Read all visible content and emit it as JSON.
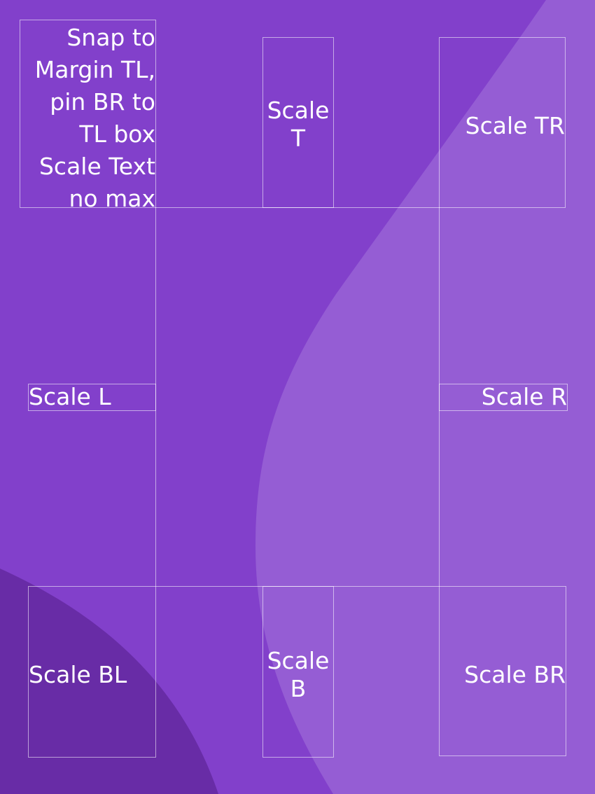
{
  "colors": {
    "background": "#8240cb",
    "light_wave": "#955dd4",
    "dark_wave": "#682ca6",
    "text": "#ffffff",
    "outline": "#ffffff"
  },
  "labels": {
    "top_left_lines": [
      "Snap to",
      "Margin TL,",
      "pin BR to",
      "TL box",
      "Scale Text",
      "no max"
    ],
    "top_lines": [
      "Scale",
      "T"
    ],
    "top_right": "Scale TR",
    "left": "Scale L",
    "right": "Scale R",
    "bottom_left": "Scale BL",
    "bottom_lines": [
      "Scale",
      "B"
    ],
    "bottom_right": "Scale BR"
  }
}
